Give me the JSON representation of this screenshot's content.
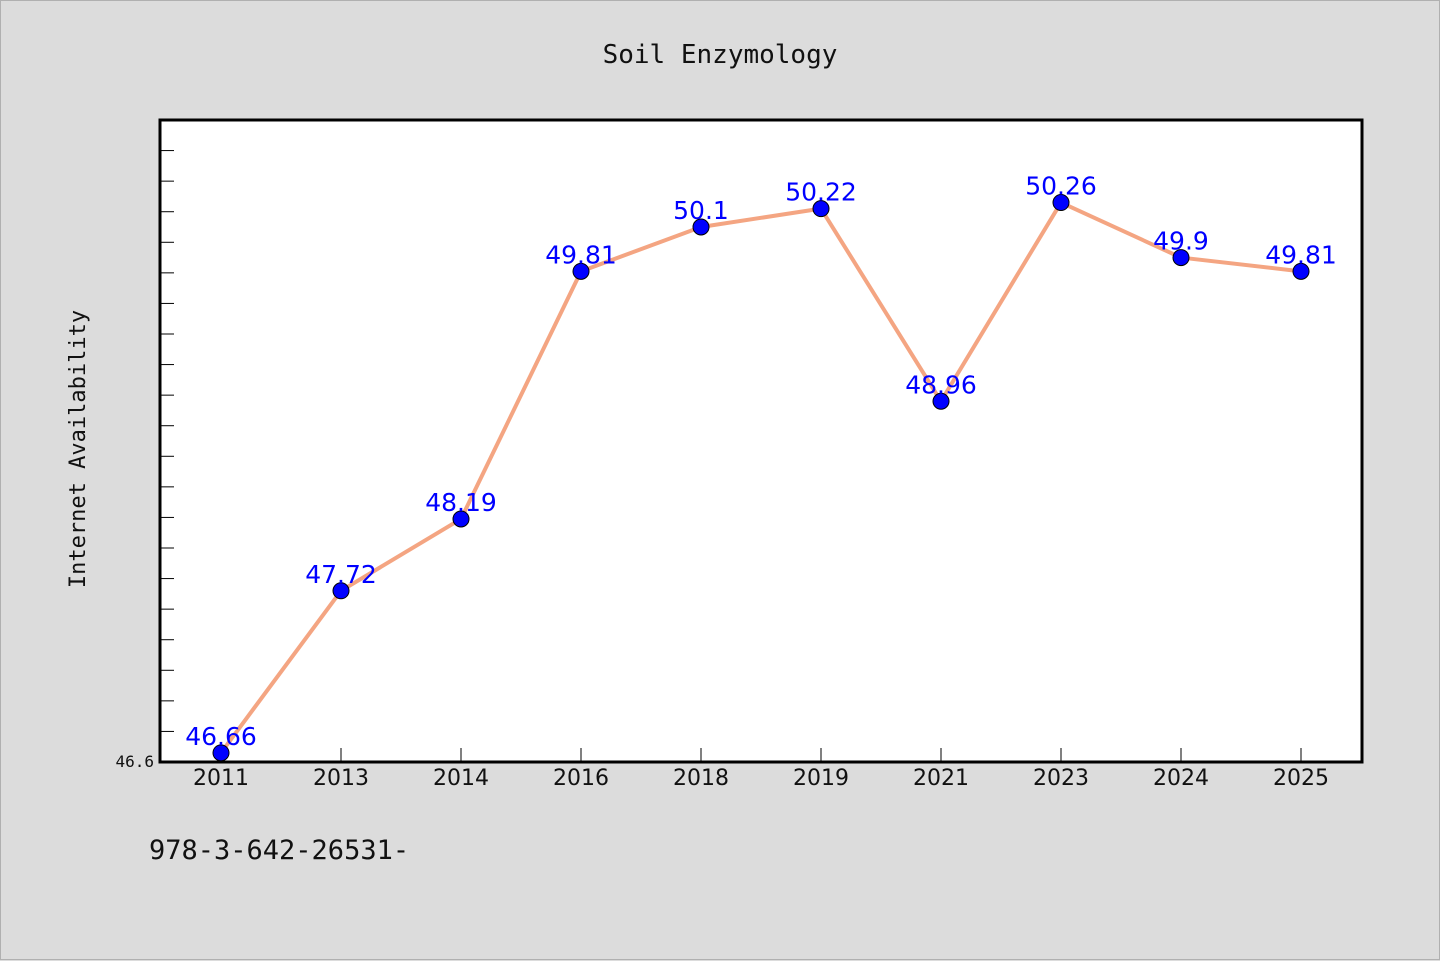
{
  "footnote": "978-3-642-26531-",
  "chart_data": {
    "type": "line",
    "title": "Soil Enzymology",
    "xlabel": "",
    "ylabel": "Internet Availability",
    "categories": [
      "2011",
      "2013",
      "2014",
      "2016",
      "2018",
      "2019",
      "2021",
      "2023",
      "2024",
      "2025"
    ],
    "series": [
      {
        "values": [
          46.66,
          47.72,
          48.19,
          49.81,
          50.1,
          50.22,
          48.96,
          50.26,
          49.9,
          49.81
        ],
        "data_labels": [
          "46.66",
          "47.72",
          "48.19",
          "49.81",
          "50.1",
          "50.22",
          "48.96",
          "50.26",
          "49.9",
          "49.81"
        ]
      }
    ],
    "ylim": [
      46.6,
      50.8
    ],
    "yticks_labeled": [
      "46.6"
    ],
    "grid": false,
    "legend": "none",
    "colors": {
      "line": "#f4a582",
      "marker": "#0000ff",
      "data_label": "#0000ff",
      "background": "#dcdcdc",
      "plot_background": "#ffffff"
    }
  }
}
